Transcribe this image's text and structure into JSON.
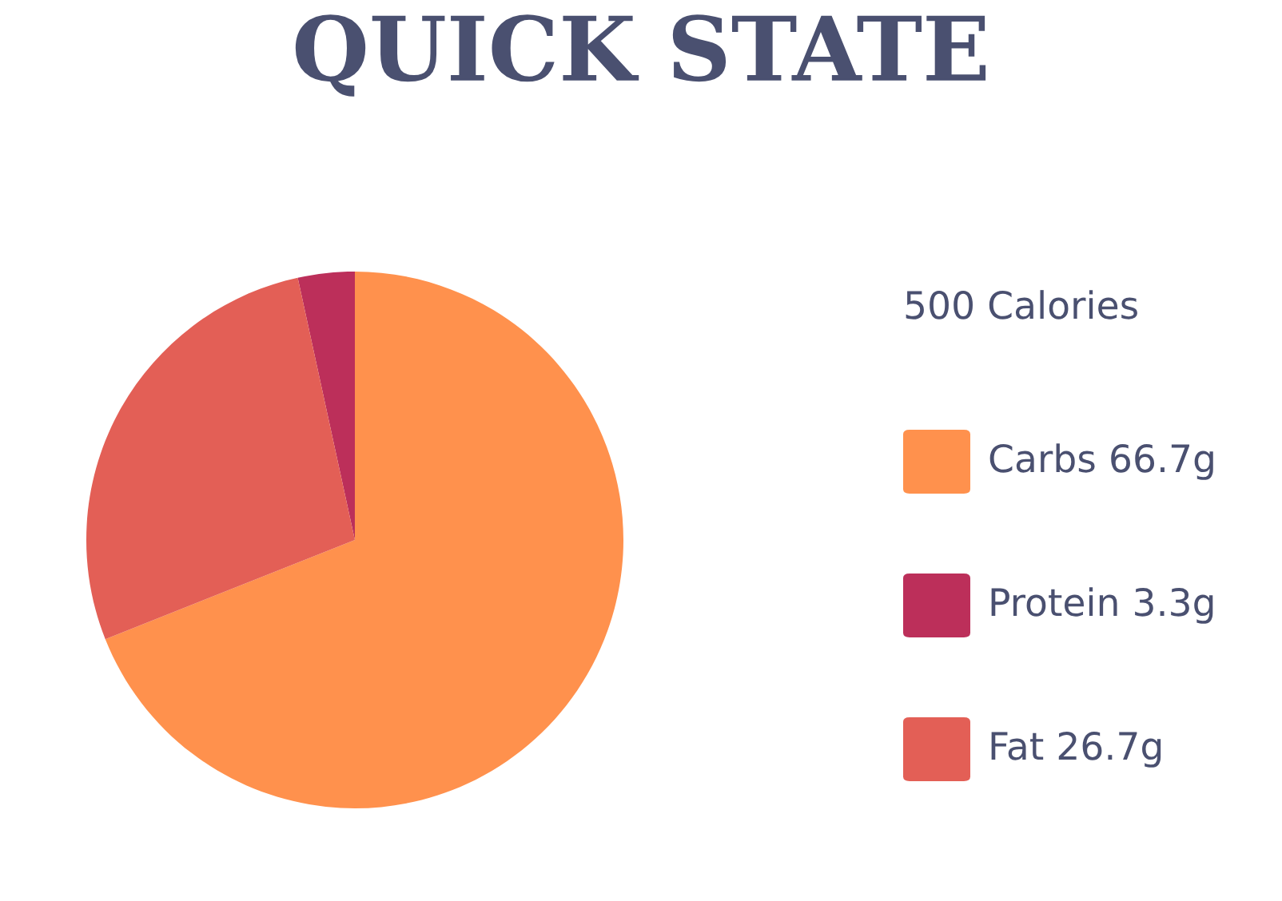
{
  "chart_data": {
    "type": "pie",
    "title": "QUICK STATE",
    "legend_title": "500 Calories",
    "categories": [
      "Carbs 66.7g",
      "Protein 3.3g",
      "Fat 26.7g"
    ],
    "values": [
      66.7,
      3.3,
      26.7
    ],
    "colors": [
      "#ff914d",
      "#bc2f5a",
      "#e35f56"
    ],
    "legend": "right"
  }
}
